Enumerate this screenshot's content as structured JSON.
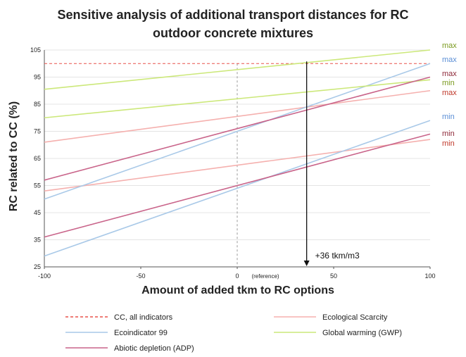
{
  "chart_data": {
    "type": "line",
    "title_lines": [
      "Sensitive analysis of additional transport distances for RC",
      "outdoor concrete mixtures"
    ],
    "xlabel": "Amount of added tkm to RC options",
    "ylabel": "RC related to CC (%)",
    "xlim": [
      -100,
      100
    ],
    "ylim": [
      25,
      105
    ],
    "x_ticks": [
      "-100",
      "-50",
      "0",
      "50",
      "100"
    ],
    "y_ticks": [
      "105",
      "95",
      "85",
      "75",
      "65",
      "55",
      "45",
      "35",
      "25"
    ],
    "reference_note": "(reference)",
    "grid": "horizontal",
    "reference_line": {
      "name": "CC, all indicators",
      "y": 100,
      "color": "#e8524a"
    },
    "annotation": {
      "label": "+36 tkm/m3",
      "x": 36
    },
    "series": [
      {
        "key": "eco",
        "name": "Ecological Scarcity",
        "color": "#f5b0ae",
        "lines": [
          {
            "x": [
              -100,
              100
            ],
            "y": [
              71,
              90
            ],
            "end_label": "max"
          },
          {
            "x": [
              -100,
              100
            ],
            "y": [
              53,
              72
            ],
            "end_label": "min"
          }
        ]
      },
      {
        "key": "ei99",
        "name": "Ecoindicator 99",
        "color": "#a9c9e8",
        "lines": [
          {
            "x": [
              -100,
              100
            ],
            "y": [
              50,
              100
            ],
            "end_label": "max"
          },
          {
            "x": [
              -100,
              100
            ],
            "y": [
              29,
              79
            ],
            "end_label": "min"
          }
        ]
      },
      {
        "key": "gwp",
        "name": "Global warming (GWP)",
        "color": "#cce87a",
        "lines": [
          {
            "x": [
              -100,
              100
            ],
            "y": [
              90.5,
              105
            ],
            "end_label": "max"
          },
          {
            "x": [
              -100,
              100
            ],
            "y": [
              80,
              94
            ],
            "end_label": "min"
          }
        ]
      },
      {
        "key": "adp",
        "name": "Abiotic depletion (ADP)",
        "color": "#c9648a",
        "lines": [
          {
            "x": [
              -100,
              100
            ],
            "y": [
              57,
              95
            ],
            "end_label": "max"
          },
          {
            "x": [
              -100,
              100
            ],
            "y": [
              36,
              74
            ],
            "end_label": "min"
          }
        ]
      }
    ],
    "end_label_colors": {
      "gwp_max": "#7a9a1e",
      "ei99_max": "#5b8fd6",
      "adp_max": "#8e2a3a",
      "gwp_min": "#7a9a1e",
      "eco_max": "#c0392b",
      "ei99_min": "#5b8fd6",
      "adp_min": "#8e2a3a",
      "eco_min": "#c0392b"
    }
  }
}
